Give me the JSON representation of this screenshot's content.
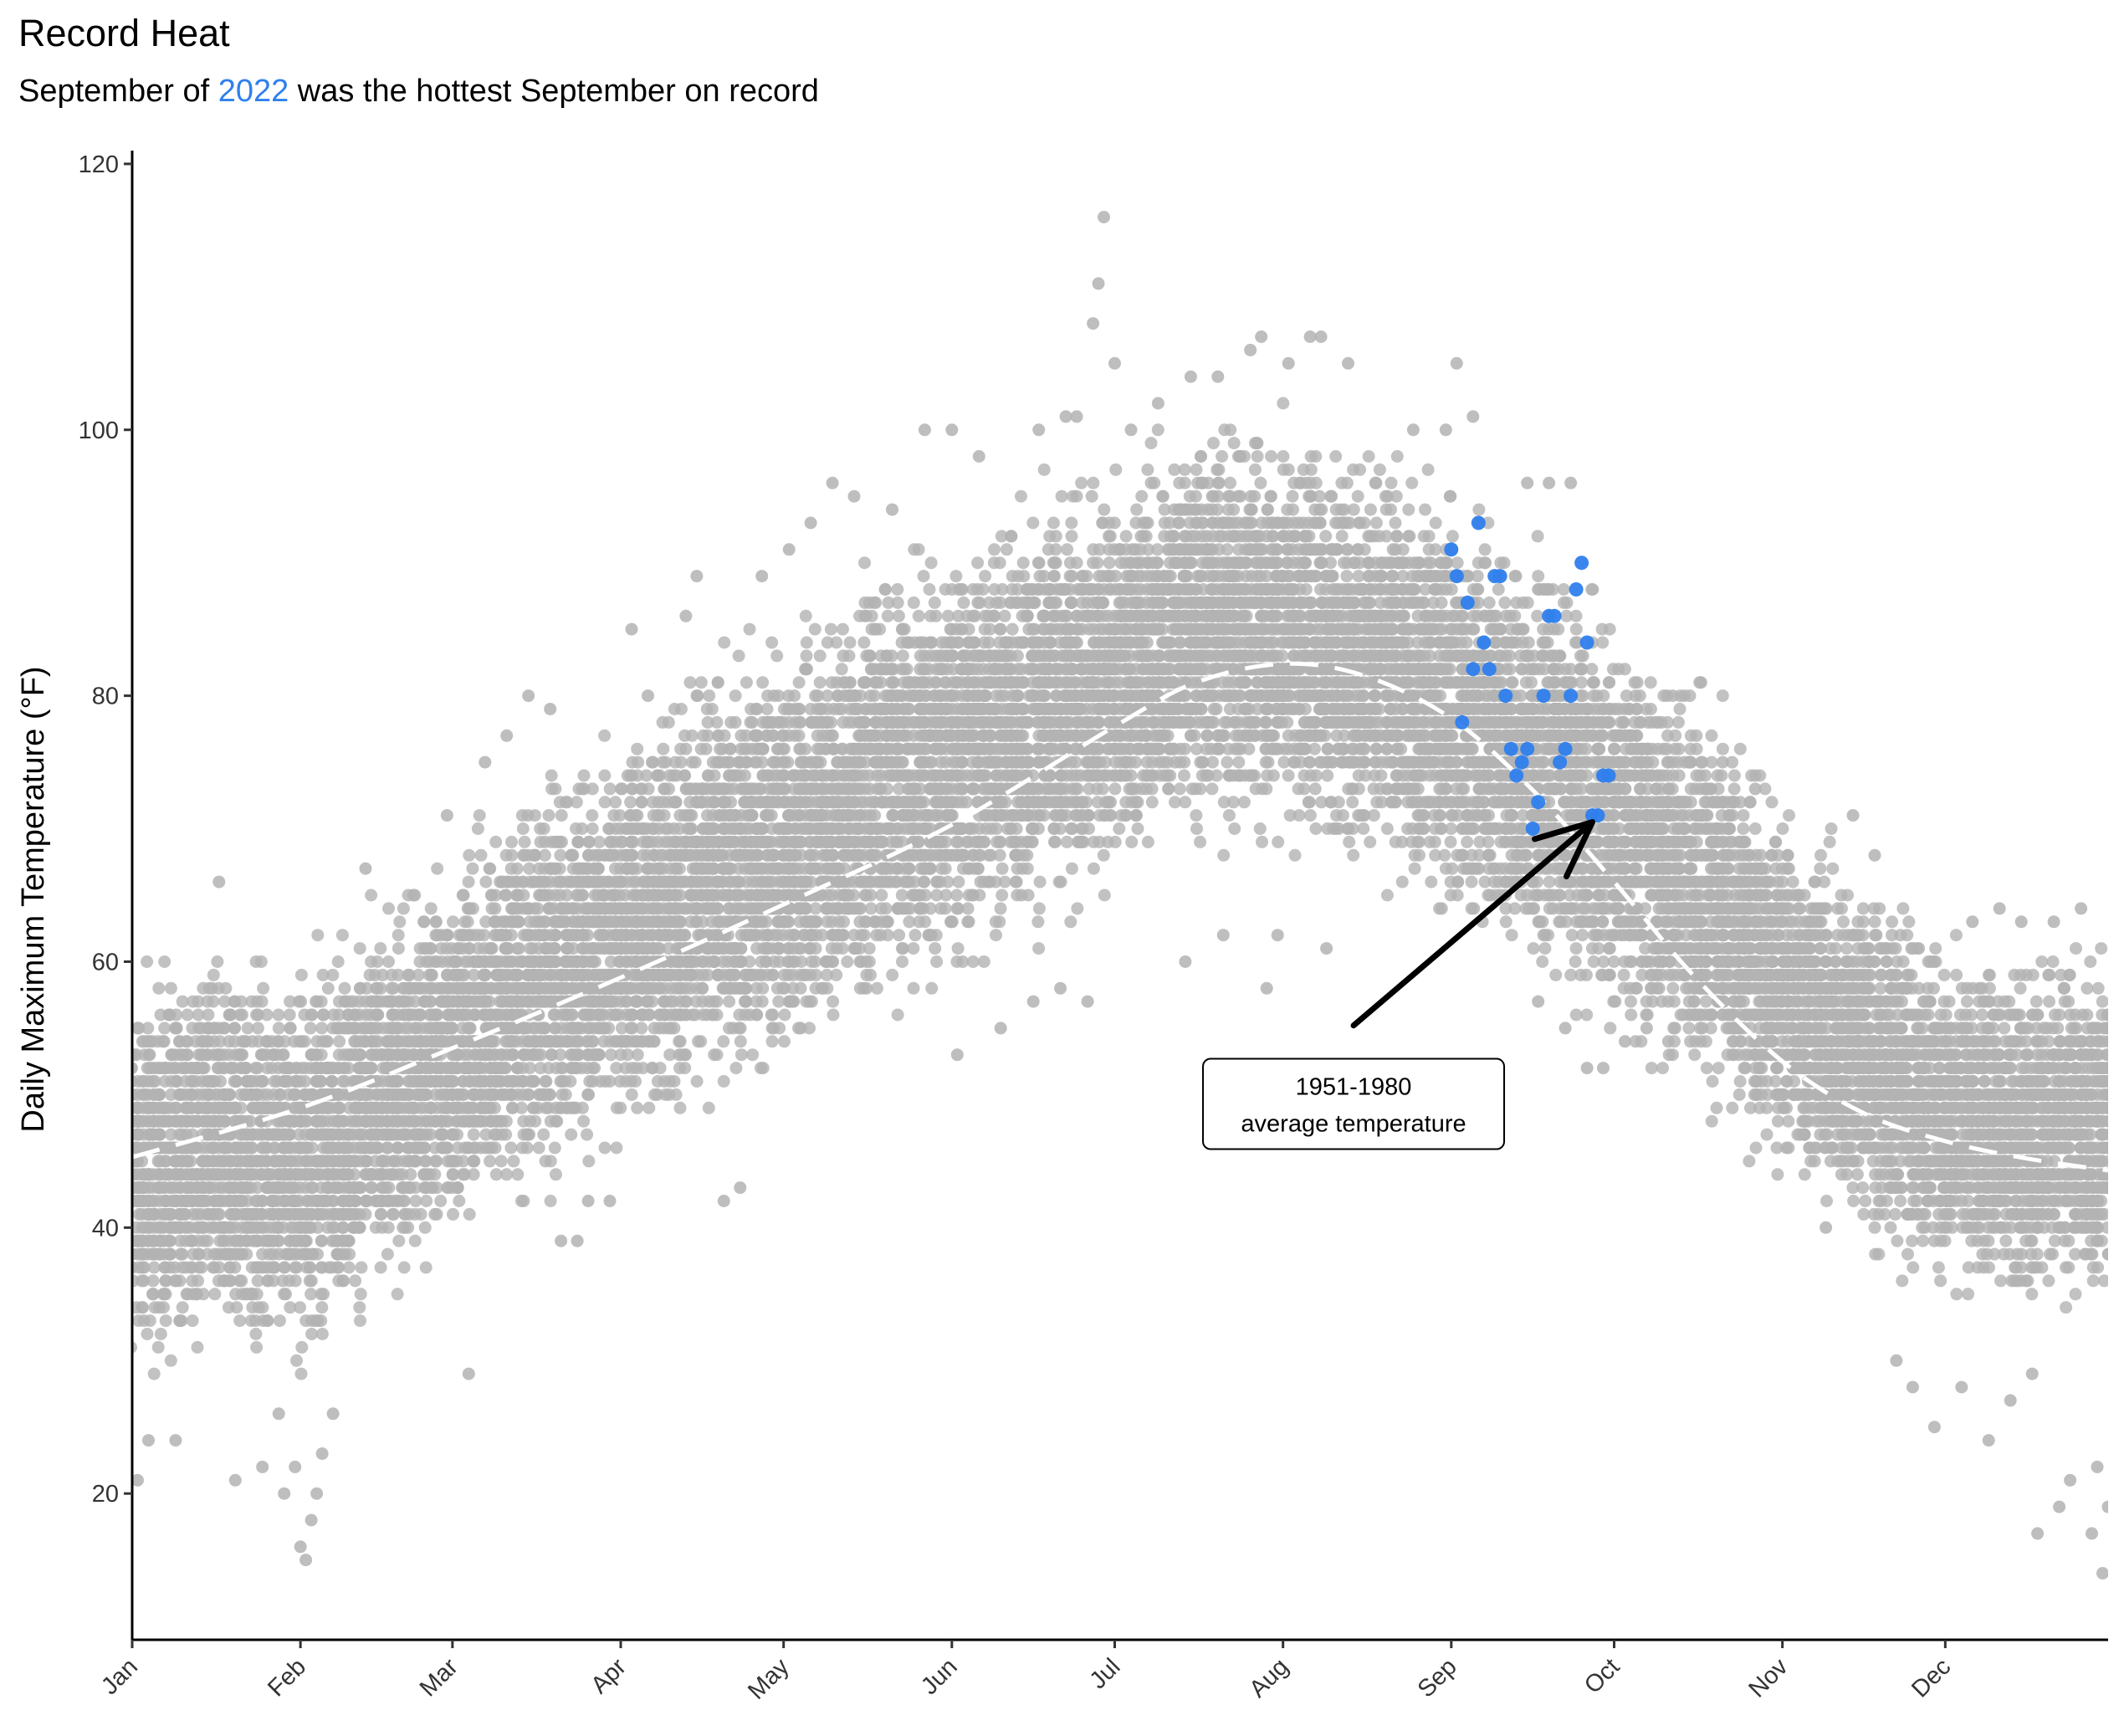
{
  "chart_data": {
    "type": "scatter",
    "title": "Record Heat",
    "subtitle_pre": "September of ",
    "subtitle_highlight": "2022",
    "subtitle_post": " was the hottest September on record",
    "xlabel": "",
    "ylabel": "Daily Maximum Temperature (°F)",
    "ylim": [
      9,
      121
    ],
    "yticks": [
      20,
      40,
      60,
      80,
      100,
      120
    ],
    "xlim": [
      1,
      365
    ],
    "xticks": [
      {
        "day": 1,
        "label": "Jan"
      },
      {
        "day": 32,
        "label": "Feb"
      },
      {
        "day": 60,
        "label": "Mar"
      },
      {
        "day": 91,
        "label": "Apr"
      },
      {
        "day": 121,
        "label": "May"
      },
      {
        "day": 152,
        "label": "Jun"
      },
      {
        "day": 182,
        "label": "Jul"
      },
      {
        "day": 213,
        "label": "Aug"
      },
      {
        "day": 244,
        "label": "Sep"
      },
      {
        "day": 274,
        "label": "Oct"
      },
      {
        "day": 305,
        "label": "Nov"
      },
      {
        "day": 335,
        "label": "Dec"
      }
    ],
    "grid": false,
    "legend": "none",
    "background_series": {
      "description_of_envelope": "historical daily maxima, all years",
      "color": "#b3b3b3",
      "envelope": {
        "day": [
          1,
          15,
          32,
          46,
          60,
          75,
          91,
          106,
          121,
          136,
          152,
          167,
          182,
          197,
          213,
          228,
          244,
          259,
          274,
          289,
          305,
          320,
          335,
          350,
          365
        ],
        "lower": [
          28,
          29,
          28,
          33,
          37,
          41,
          45,
          48,
          50,
          54,
          57,
          60,
          64,
          68,
          67,
          66,
          61,
          57,
          53,
          48,
          42,
          37,
          34,
          33,
          33
        ],
        "upper": [
          60,
          62,
          62,
          65,
          70,
          75,
          79,
          84,
          87,
          91,
          94,
          97,
          99,
          102,
          103,
          100,
          98,
          93,
          88,
          83,
          74,
          68,
          63,
          62,
          62
        ]
      },
      "outliers": [
        [
          2,
          21
        ],
        [
          4,
          24
        ],
        [
          9,
          24
        ],
        [
          20,
          21
        ],
        [
          25,
          22
        ],
        [
          28,
          26
        ],
        [
          31,
          22
        ],
        [
          29,
          20
        ],
        [
          32,
          16
        ],
        [
          33,
          15
        ],
        [
          34,
          18
        ],
        [
          35,
          20
        ],
        [
          36,
          23
        ],
        [
          38,
          26
        ],
        [
          17,
          66
        ],
        [
          44,
          67
        ],
        [
          59,
          71
        ],
        [
          63,
          29
        ],
        [
          66,
          75
        ],
        [
          70,
          77
        ],
        [
          74,
          80
        ],
        [
          78,
          79
        ],
        [
          80,
          39
        ],
        [
          83,
          39
        ],
        [
          85,
          42
        ],
        [
          89,
          42
        ],
        [
          93,
          85
        ],
        [
          96,
          80
        ],
        [
          103,
          86
        ],
        [
          105,
          89
        ],
        [
          110,
          42
        ],
        [
          113,
          43
        ],
        [
          117,
          89
        ],
        [
          122,
          91
        ],
        [
          126,
          93
        ],
        [
          130,
          96
        ],
        [
          134,
          95
        ],
        [
          141,
          94
        ],
        [
          147,
          100
        ],
        [
          152,
          100
        ],
        [
          157,
          98
        ],
        [
          153,
          53
        ],
        [
          161,
          55
        ],
        [
          167,
          57
        ],
        [
          172,
          58
        ],
        [
          177,
          57
        ],
        [
          168,
          100
        ],
        [
          173,
          101
        ],
        [
          175,
          101
        ],
        [
          178,
          108
        ],
        [
          179,
          111
        ],
        [
          180,
          116
        ],
        [
          182,
          105
        ],
        [
          185,
          100
        ],
        [
          190,
          102
        ],
        [
          196,
          104
        ],
        [
          201,
          104
        ],
        [
          207,
          106
        ],
        [
          209,
          107
        ],
        [
          214,
          105
        ],
        [
          218,
          107
        ],
        [
          220,
          107
        ],
        [
          225,
          105
        ],
        [
          195,
          60
        ],
        [
          202,
          62
        ],
        [
          210,
          58
        ],
        [
          212,
          62
        ],
        [
          221,
          61
        ],
        [
          237,
          100
        ],
        [
          243,
          100
        ],
        [
          245,
          105
        ],
        [
          248,
          101
        ],
        [
          258,
          96
        ],
        [
          262,
          96
        ],
        [
          266,
          96
        ],
        [
          260,
          57
        ],
        [
          265,
          55
        ],
        [
          269,
          52
        ],
        [
          272,
          52
        ],
        [
          276,
          54
        ],
        [
          280,
          55
        ],
        [
          284,
          54
        ],
        [
          290,
          81
        ],
        [
          294,
          75
        ],
        [
          300,
          73
        ],
        [
          305,
          50
        ],
        [
          309,
          48
        ],
        [
          313,
          40
        ],
        [
          318,
          71
        ],
        [
          322,
          68
        ],
        [
          326,
          30
        ],
        [
          329,
          28
        ],
        [
          333,
          25
        ],
        [
          338,
          28
        ],
        [
          343,
          24
        ],
        [
          347,
          27
        ],
        [
          351,
          29
        ],
        [
          352,
          17
        ],
        [
          356,
          19
        ],
        [
          358,
          21
        ],
        [
          362,
          17
        ],
        [
          363,
          22
        ],
        [
          364,
          14
        ],
        [
          365,
          19
        ],
        [
          340,
          63
        ],
        [
          345,
          64
        ],
        [
          349,
          63
        ],
        [
          355,
          63
        ],
        [
          360,
          64
        ]
      ]
    },
    "highlight_series": {
      "name": "2022",
      "color": "#2f80ed",
      "x": [
        244,
        245,
        246,
        247,
        248,
        249,
        250,
        251,
        252,
        253,
        254,
        255,
        256,
        257,
        258,
        259,
        260,
        261,
        262,
        263,
        264,
        265,
        266,
        267,
        268,
        269,
        270,
        271,
        272,
        273
      ],
      "y": [
        91,
        89,
        78,
        87,
        82,
        93,
        84,
        82,
        89,
        89,
        80,
        76,
        74,
        75,
        76,
        70,
        72,
        80,
        86,
        86,
        75,
        76,
        80,
        88,
        90,
        84,
        71,
        71,
        74,
        74
      ]
    },
    "average_line": {
      "day": [
        1,
        32,
        60,
        91,
        121,
        152,
        182,
        197,
        213,
        228,
        244,
        259,
        274,
        289,
        305,
        320,
        335,
        350,
        365
      ],
      "temp": [
        45.3,
        49.0,
        53.5,
        58.8,
        64.3,
        70.3,
        77.7,
        81.0,
        82.4,
        81.5,
        78.3,
        72.9,
        66.0,
        58.8,
        52.5,
        48.6,
        46.5,
        45.2,
        44.3
      ],
      "color": "#ffffff",
      "style": "dashed"
    },
    "annotation": {
      "line1": "1951-1980",
      "line2": "average temperature",
      "label_day": 226,
      "label_temp": 49.3,
      "arrow_from_day": 226,
      "arrow_from_temp": 55.2,
      "arrow_to_day": 270,
      "arrow_to_temp": 70.5
    }
  }
}
